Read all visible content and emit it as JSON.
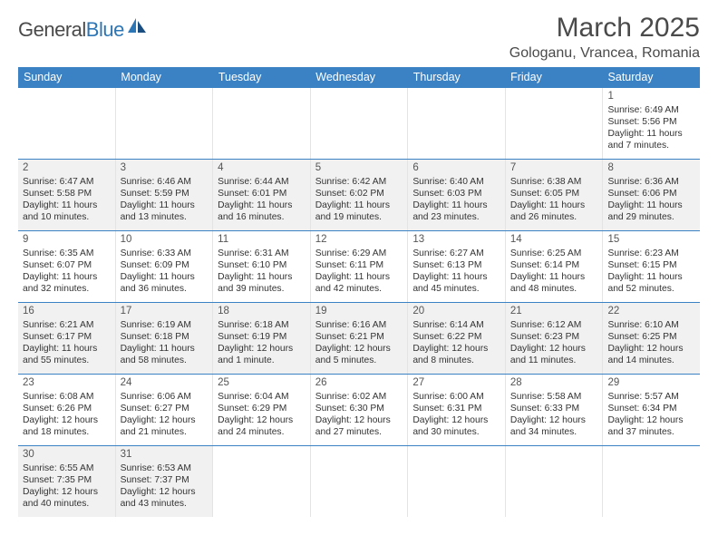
{
  "logo": {
    "part1": "General",
    "part2": "Blue"
  },
  "title": "March 2025",
  "location": "Gologanu, Vrancea, Romania",
  "colors": {
    "header_bg": "#3b82c4",
    "header_text": "#ffffff",
    "row_border": "#3b82c4",
    "alt_bg": "#f1f1f1",
    "text": "#333333"
  },
  "day_labels": [
    "Sunday",
    "Monday",
    "Tuesday",
    "Wednesday",
    "Thursday",
    "Friday",
    "Saturday"
  ],
  "weeks": [
    [
      {
        "empty": true
      },
      {
        "empty": true
      },
      {
        "empty": true
      },
      {
        "empty": true
      },
      {
        "empty": true
      },
      {
        "empty": true
      },
      {
        "day": "1",
        "sunrise": "Sunrise: 6:49 AM",
        "sunset": "Sunset: 5:56 PM",
        "daylight": "Daylight: 11 hours and 7 minutes.",
        "alt": false
      }
    ],
    [
      {
        "day": "2",
        "sunrise": "Sunrise: 6:47 AM",
        "sunset": "Sunset: 5:58 PM",
        "daylight": "Daylight: 11 hours and 10 minutes.",
        "alt": true
      },
      {
        "day": "3",
        "sunrise": "Sunrise: 6:46 AM",
        "sunset": "Sunset: 5:59 PM",
        "daylight": "Daylight: 11 hours and 13 minutes.",
        "alt": true
      },
      {
        "day": "4",
        "sunrise": "Sunrise: 6:44 AM",
        "sunset": "Sunset: 6:01 PM",
        "daylight": "Daylight: 11 hours and 16 minutes.",
        "alt": true
      },
      {
        "day": "5",
        "sunrise": "Sunrise: 6:42 AM",
        "sunset": "Sunset: 6:02 PM",
        "daylight": "Daylight: 11 hours and 19 minutes.",
        "alt": true
      },
      {
        "day": "6",
        "sunrise": "Sunrise: 6:40 AM",
        "sunset": "Sunset: 6:03 PM",
        "daylight": "Daylight: 11 hours and 23 minutes.",
        "alt": true
      },
      {
        "day": "7",
        "sunrise": "Sunrise: 6:38 AM",
        "sunset": "Sunset: 6:05 PM",
        "daylight": "Daylight: 11 hours and 26 minutes.",
        "alt": true
      },
      {
        "day": "8",
        "sunrise": "Sunrise: 6:36 AM",
        "sunset": "Sunset: 6:06 PM",
        "daylight": "Daylight: 11 hours and 29 minutes.",
        "alt": true
      }
    ],
    [
      {
        "day": "9",
        "sunrise": "Sunrise: 6:35 AM",
        "sunset": "Sunset: 6:07 PM",
        "daylight": "Daylight: 11 hours and 32 minutes.",
        "alt": false
      },
      {
        "day": "10",
        "sunrise": "Sunrise: 6:33 AM",
        "sunset": "Sunset: 6:09 PM",
        "daylight": "Daylight: 11 hours and 36 minutes.",
        "alt": false
      },
      {
        "day": "11",
        "sunrise": "Sunrise: 6:31 AM",
        "sunset": "Sunset: 6:10 PM",
        "daylight": "Daylight: 11 hours and 39 minutes.",
        "alt": false
      },
      {
        "day": "12",
        "sunrise": "Sunrise: 6:29 AM",
        "sunset": "Sunset: 6:11 PM",
        "daylight": "Daylight: 11 hours and 42 minutes.",
        "alt": false
      },
      {
        "day": "13",
        "sunrise": "Sunrise: 6:27 AM",
        "sunset": "Sunset: 6:13 PM",
        "daylight": "Daylight: 11 hours and 45 minutes.",
        "alt": false
      },
      {
        "day": "14",
        "sunrise": "Sunrise: 6:25 AM",
        "sunset": "Sunset: 6:14 PM",
        "daylight": "Daylight: 11 hours and 48 minutes.",
        "alt": false
      },
      {
        "day": "15",
        "sunrise": "Sunrise: 6:23 AM",
        "sunset": "Sunset: 6:15 PM",
        "daylight": "Daylight: 11 hours and 52 minutes.",
        "alt": false
      }
    ],
    [
      {
        "day": "16",
        "sunrise": "Sunrise: 6:21 AM",
        "sunset": "Sunset: 6:17 PM",
        "daylight": "Daylight: 11 hours and 55 minutes.",
        "alt": true
      },
      {
        "day": "17",
        "sunrise": "Sunrise: 6:19 AM",
        "sunset": "Sunset: 6:18 PM",
        "daylight": "Daylight: 11 hours and 58 minutes.",
        "alt": true
      },
      {
        "day": "18",
        "sunrise": "Sunrise: 6:18 AM",
        "sunset": "Sunset: 6:19 PM",
        "daylight": "Daylight: 12 hours and 1 minute.",
        "alt": true
      },
      {
        "day": "19",
        "sunrise": "Sunrise: 6:16 AM",
        "sunset": "Sunset: 6:21 PM",
        "daylight": "Daylight: 12 hours and 5 minutes.",
        "alt": true
      },
      {
        "day": "20",
        "sunrise": "Sunrise: 6:14 AM",
        "sunset": "Sunset: 6:22 PM",
        "daylight": "Daylight: 12 hours and 8 minutes.",
        "alt": true
      },
      {
        "day": "21",
        "sunrise": "Sunrise: 6:12 AM",
        "sunset": "Sunset: 6:23 PM",
        "daylight": "Daylight: 12 hours and 11 minutes.",
        "alt": true
      },
      {
        "day": "22",
        "sunrise": "Sunrise: 6:10 AM",
        "sunset": "Sunset: 6:25 PM",
        "daylight": "Daylight: 12 hours and 14 minutes.",
        "alt": true
      }
    ],
    [
      {
        "day": "23",
        "sunrise": "Sunrise: 6:08 AM",
        "sunset": "Sunset: 6:26 PM",
        "daylight": "Daylight: 12 hours and 18 minutes.",
        "alt": false
      },
      {
        "day": "24",
        "sunrise": "Sunrise: 6:06 AM",
        "sunset": "Sunset: 6:27 PM",
        "daylight": "Daylight: 12 hours and 21 minutes.",
        "alt": false
      },
      {
        "day": "25",
        "sunrise": "Sunrise: 6:04 AM",
        "sunset": "Sunset: 6:29 PM",
        "daylight": "Daylight: 12 hours and 24 minutes.",
        "alt": false
      },
      {
        "day": "26",
        "sunrise": "Sunrise: 6:02 AM",
        "sunset": "Sunset: 6:30 PM",
        "daylight": "Daylight: 12 hours and 27 minutes.",
        "alt": false
      },
      {
        "day": "27",
        "sunrise": "Sunrise: 6:00 AM",
        "sunset": "Sunset: 6:31 PM",
        "daylight": "Daylight: 12 hours and 30 minutes.",
        "alt": false
      },
      {
        "day": "28",
        "sunrise": "Sunrise: 5:58 AM",
        "sunset": "Sunset: 6:33 PM",
        "daylight": "Daylight: 12 hours and 34 minutes.",
        "alt": false
      },
      {
        "day": "29",
        "sunrise": "Sunrise: 5:57 AM",
        "sunset": "Sunset: 6:34 PM",
        "daylight": "Daylight: 12 hours and 37 minutes.",
        "alt": false
      }
    ],
    [
      {
        "day": "30",
        "sunrise": "Sunrise: 6:55 AM",
        "sunset": "Sunset: 7:35 PM",
        "daylight": "Daylight: 12 hours and 40 minutes.",
        "alt": true
      },
      {
        "day": "31",
        "sunrise": "Sunrise: 6:53 AM",
        "sunset": "Sunset: 7:37 PM",
        "daylight": "Daylight: 12 hours and 43 minutes.",
        "alt": true
      },
      {
        "empty": true
      },
      {
        "empty": true
      },
      {
        "empty": true
      },
      {
        "empty": true
      },
      {
        "empty": true
      }
    ]
  ]
}
